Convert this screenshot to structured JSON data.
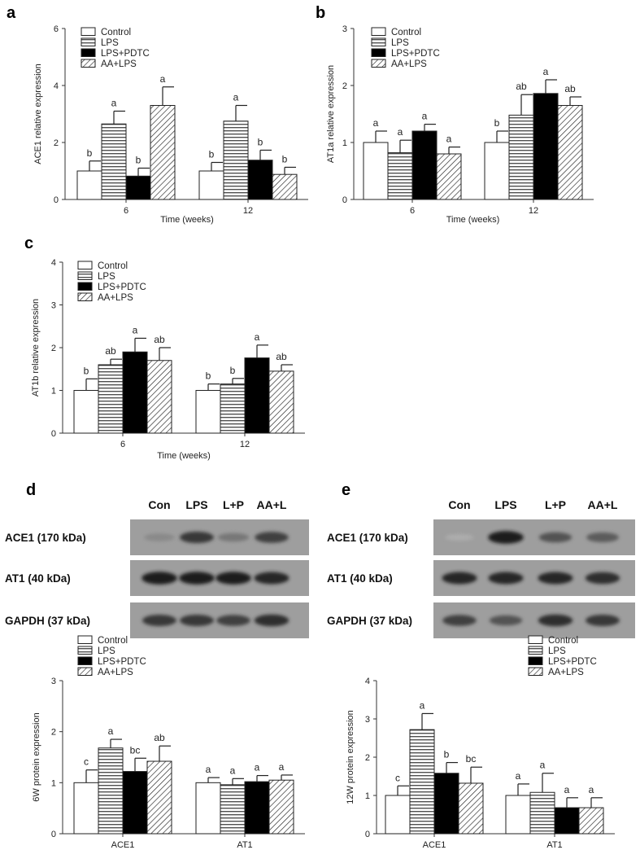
{
  "legend": [
    "Control",
    "LPS",
    "LPS+PDTC",
    "AA+LPS"
  ],
  "colors": {
    "control": "#ffffff",
    "lps_pattern": "horizontal-stripes",
    "pdtc": "#000000",
    "aa_pattern": "diagonal-hatch",
    "blot_bg": "#9e9e9e",
    "band": "#1a1a1a"
  },
  "chart_data": [
    {
      "panel": "a",
      "type": "bar",
      "xlabel": "Time (weeks)",
      "ylabel": "ACE1 relative expression",
      "categories": [
        "6",
        "12"
      ],
      "ylim": [
        0,
        6
      ],
      "yticks": [
        0,
        2,
        4,
        6
      ],
      "series": [
        {
          "name": "Control",
          "values": [
            1.0,
            1.0
          ],
          "errors": [
            0.35,
            0.3
          ],
          "labels": [
            "b",
            "b"
          ]
        },
        {
          "name": "LPS",
          "values": [
            2.65,
            2.75
          ],
          "errors": [
            0.45,
            0.55
          ],
          "labels": [
            "a",
            "a"
          ]
        },
        {
          "name": "LPS+PDTC",
          "values": [
            0.82,
            1.38
          ],
          "errors": [
            0.28,
            0.35
          ],
          "labels": [
            "b",
            "b"
          ]
        },
        {
          "name": "AA+LPS",
          "values": [
            3.3,
            0.88
          ],
          "errors": [
            0.65,
            0.25
          ],
          "labels": [
            "a",
            "b"
          ]
        }
      ]
    },
    {
      "panel": "b",
      "type": "bar",
      "xlabel": "Time (weeks)",
      "ylabel": "AT1a relative expression",
      "categories": [
        "6",
        "12"
      ],
      "ylim": [
        0,
        3
      ],
      "yticks": [
        0,
        1,
        2,
        3
      ],
      "series": [
        {
          "name": "Control",
          "values": [
            1.0,
            1.0
          ],
          "errors": [
            0.2,
            0.2
          ],
          "labels": [
            "a",
            "b"
          ]
        },
        {
          "name": "LPS",
          "values": [
            0.82,
            1.48
          ],
          "errors": [
            0.22,
            0.36
          ],
          "labels": [
            "a",
            "ab"
          ]
        },
        {
          "name": "LPS+PDTC",
          "values": [
            1.2,
            1.86
          ],
          "errors": [
            0.12,
            0.24
          ],
          "labels": [
            "a",
            "a"
          ]
        },
        {
          "name": "AA+LPS",
          "values": [
            0.8,
            1.65
          ],
          "errors": [
            0.12,
            0.15
          ],
          "labels": [
            "a",
            "ab"
          ]
        }
      ]
    },
    {
      "panel": "c",
      "type": "bar",
      "xlabel": "Time (weeks)",
      "ylabel": "AT1b relative expression",
      "categories": [
        "6",
        "12"
      ],
      "ylim": [
        0,
        4
      ],
      "yticks": [
        0,
        1,
        2,
        3,
        4
      ],
      "series": [
        {
          "name": "Control",
          "values": [
            1.0,
            1.0
          ],
          "errors": [
            0.27,
            0.15
          ],
          "labels": [
            "b",
            "b"
          ]
        },
        {
          "name": "LPS",
          "values": [
            1.6,
            1.15
          ],
          "errors": [
            0.13,
            0.13
          ],
          "labels": [
            "ab",
            "b"
          ]
        },
        {
          "name": "LPS+PDTC",
          "values": [
            1.9,
            1.76
          ],
          "errors": [
            0.32,
            0.3
          ],
          "labels": [
            "a",
            "a"
          ]
        },
        {
          "name": "AA+LPS",
          "values": [
            1.7,
            1.45
          ],
          "errors": [
            0.3,
            0.15
          ],
          "labels": [
            "ab",
            "ab"
          ]
        }
      ]
    },
    {
      "panel": "d",
      "type": "bar",
      "xlabel": "",
      "ylabel": "6W protein expression",
      "categories": [
        "ACE1",
        "AT1"
      ],
      "ylim": [
        0,
        3
      ],
      "yticks": [
        0,
        1,
        2,
        3
      ],
      "series": [
        {
          "name": "Control",
          "values": [
            1.0,
            1.0
          ],
          "errors": [
            0.25,
            0.1
          ],
          "labels": [
            "c",
            "a"
          ]
        },
        {
          "name": "LPS",
          "values": [
            1.68,
            0.96
          ],
          "errors": [
            0.17,
            0.12
          ],
          "labels": [
            "a",
            "a"
          ]
        },
        {
          "name": "LPS+PDTC",
          "values": [
            1.22,
            1.02
          ],
          "errors": [
            0.26,
            0.12
          ],
          "labels": [
            "bc",
            "a"
          ]
        },
        {
          "name": "AA+LPS",
          "values": [
            1.42,
            1.05
          ],
          "errors": [
            0.3,
            0.1
          ],
          "labels": [
            "ab",
            "a"
          ]
        }
      ]
    },
    {
      "panel": "e",
      "type": "bar",
      "xlabel": "",
      "ylabel": "12W protein expression",
      "categories": [
        "ACE1",
        "AT1"
      ],
      "ylim": [
        0,
        4
      ],
      "yticks": [
        0,
        1,
        2,
        3,
        4
      ],
      "series": [
        {
          "name": "Control",
          "values": [
            1.0,
            1.0
          ],
          "errors": [
            0.25,
            0.3
          ],
          "labels": [
            "c",
            "a"
          ]
        },
        {
          "name": "LPS",
          "values": [
            2.72,
            1.08
          ],
          "errors": [
            0.42,
            0.5
          ],
          "labels": [
            "a",
            "a"
          ]
        },
        {
          "name": "LPS+PDTC",
          "values": [
            1.58,
            0.68
          ],
          "errors": [
            0.28,
            0.26
          ],
          "labels": [
            "b",
            "a"
          ]
        },
        {
          "name": "AA+LPS",
          "values": [
            1.32,
            0.68
          ],
          "errors": [
            0.42,
            0.26
          ],
          "labels": [
            "bc",
            "a"
          ]
        }
      ]
    }
  ],
  "blots": [
    {
      "panel": "d",
      "lanes": [
        "Con",
        "LPS",
        "L+P",
        "AA+L"
      ],
      "rows": [
        {
          "label": "ACE1 (170 kDa)",
          "intensity": [
            0.35,
            0.8,
            0.45,
            0.75
          ]
        },
        {
          "label": "AT1 (40 kDa)",
          "intensity": [
            0.95,
            0.95,
            0.95,
            0.9
          ]
        },
        {
          "label": "GAPDH (37 kDa)",
          "intensity": [
            0.8,
            0.8,
            0.75,
            0.85
          ]
        }
      ]
    },
    {
      "panel": "e",
      "lanes": [
        "Con",
        "LPS",
        "L+P",
        "AA+L"
      ],
      "rows": [
        {
          "label": "ACE1 (170 kDa)",
          "intensity": [
            0.15,
            0.95,
            0.65,
            0.6
          ]
        },
        {
          "label": "AT1 (40 kDa)",
          "intensity": [
            0.9,
            0.9,
            0.9,
            0.85
          ]
        },
        {
          "label": "GAPDH (37 kDa)",
          "intensity": [
            0.75,
            0.65,
            0.85,
            0.8
          ]
        }
      ]
    }
  ]
}
